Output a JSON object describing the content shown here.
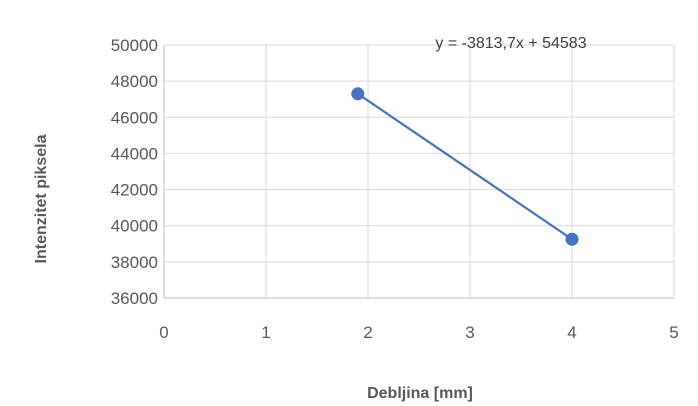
{
  "chart_data": {
    "type": "scatter",
    "xlabel": "Debljina [mm]",
    "ylabel": "Intenzitet piksela",
    "xlim": [
      0,
      5
    ],
    "ylim": [
      36000,
      50000
    ],
    "x_ticks": [
      "0",
      "1",
      "2",
      "3",
      "4",
      "5"
    ],
    "y_ticks": [
      "36000",
      "38000",
      "40000",
      "42000",
      "44000",
      "46000",
      "48000",
      "50000"
    ],
    "grid": true,
    "series": [
      {
        "x": [
          1.9,
          4.0
        ],
        "y": [
          47300,
          39250
        ],
        "color": "#4472c4",
        "line": true
      }
    ],
    "annotation": "y = -3813,7x + 54583"
  }
}
